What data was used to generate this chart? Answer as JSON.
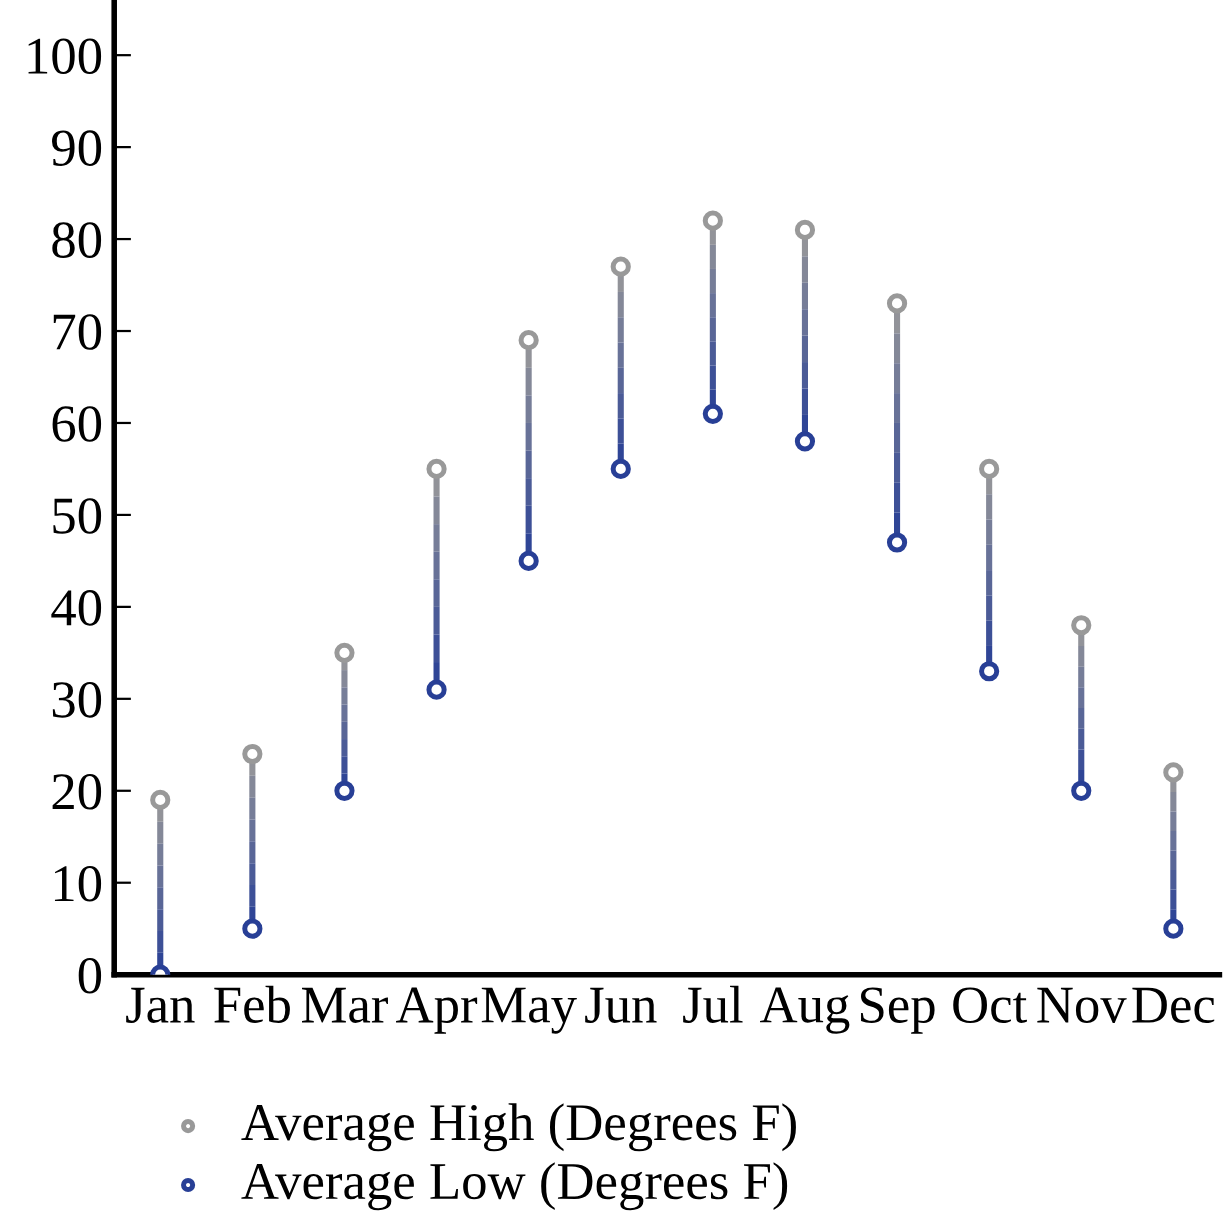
{
  "chart_data": {
    "type": "scatter",
    "categories": [
      "Jan",
      "Feb",
      "Mar",
      "Apr",
      "May",
      "Jun",
      "Jul",
      "Aug",
      "Sep",
      "Oct",
      "Nov",
      "Dec"
    ],
    "series": [
      {
        "name": "Average High (Degrees F)",
        "color": "#999999",
        "values": [
          19,
          24,
          35,
          55,
          69,
          77,
          82,
          81,
          73,
          55,
          38,
          22
        ]
      },
      {
        "name": "Average Low (Degrees F)",
        "color": "#283f96",
        "values": [
          0,
          5,
          20,
          31,
          45,
          55,
          61,
          58,
          47,
          33,
          20,
          5
        ]
      }
    ],
    "ylim": [
      0,
      106
    ],
    "yticks": [
      0,
      10,
      20,
      30,
      40,
      50,
      60,
      70,
      80,
      90,
      100
    ],
    "marker": "circle",
    "grid": false,
    "legend": "bottom"
  }
}
